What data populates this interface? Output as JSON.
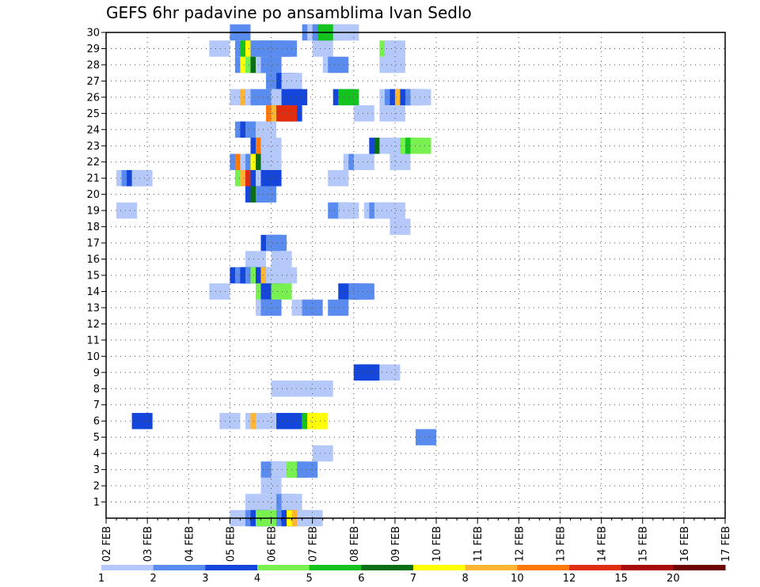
{
  "chart_data": {
    "type": "heatmap",
    "title": "GEFS 6hr padavine po ansamblima Ivan Sedlo",
    "x_ticks": [
      "02 FEB",
      "03 FEB",
      "04 FEB",
      "05 FEB",
      "06 FEB",
      "07 FEB",
      "08 FEB",
      "09 FEB",
      "10 FEB",
      "11 FEB",
      "12 FEB",
      "13 FEB",
      "14 FEB",
      "15 FEB",
      "16 FEB",
      "17 FEB"
    ],
    "y_ticks": [
      1,
      2,
      3,
      4,
      5,
      6,
      7,
      8,
      9,
      10,
      11,
      12,
      13,
      14,
      15,
      16,
      17,
      18,
      19,
      20,
      21,
      22,
      23,
      24,
      25,
      26,
      27,
      28,
      29,
      30
    ],
    "x_unit": "6-hour steps from 02 FEB 00z",
    "xlim": [
      0,
      60
    ],
    "ylim": [
      0,
      30
    ],
    "grid": true,
    "legend": {
      "position": "bottom",
      "levels": [
        "1",
        "2",
        "3",
        "4",
        "5",
        "6",
        "7",
        "8",
        "10",
        "12",
        "15",
        "20"
      ],
      "colors": [
        "#b4c8fa",
        "#5a8cf0",
        "#1446dc",
        "#78f050",
        "#14c31e",
        "#0a6e14",
        "#ffff00",
        "#ffb432",
        "#ff780a",
        "#e12d0f",
        "#aa0a0a",
        "#6e0505"
      ]
    },
    "cells": [
      [
        12,
        30,
        1
      ],
      [
        12.5,
        29,
        1
      ],
      [
        13,
        29,
        4
      ],
      [
        13.5,
        29,
        6
      ],
      [
        14,
        29,
        1
      ],
      [
        14.5,
        29,
        1
      ],
      [
        15,
        29,
        1
      ],
      [
        15.5,
        29,
        1
      ],
      [
        16,
        29,
        1
      ],
      [
        16.5,
        29,
        1
      ],
      [
        10,
        29,
        0
      ],
      [
        20,
        29,
        0
      ],
      [
        19,
        30,
        1
      ],
      [
        19.5,
        30,
        0
      ],
      [
        20,
        30,
        1
      ],
      [
        20.5,
        30,
        4
      ],
      [
        22,
        30,
        0
      ],
      [
        22.5,
        30,
        0
      ],
      [
        26.5,
        29,
        3
      ],
      [
        27,
        29,
        0
      ],
      [
        12.5,
        28,
        1
      ],
      [
        13,
        28,
        6
      ],
      [
        13.5,
        28,
        3
      ],
      [
        14,
        28,
        5
      ],
      [
        14.5,
        28,
        0
      ],
      [
        15,
        28,
        1
      ],
      [
        21,
        28,
        0
      ],
      [
        21.5,
        28,
        1
      ],
      [
        26.5,
        28,
        0
      ],
      [
        27,
        28,
        0
      ],
      [
        15.5,
        27,
        1
      ],
      [
        16,
        27,
        1
      ],
      [
        16.5,
        27,
        2
      ],
      [
        17,
        27,
        0
      ],
      [
        12,
        26,
        0
      ],
      [
        12.5,
        26,
        0
      ],
      [
        13,
        26,
        7
      ],
      [
        13.5,
        26,
        0
      ],
      [
        14,
        26,
        1
      ],
      [
        16,
        26,
        0
      ],
      [
        17,
        26,
        2
      ],
      [
        17.5,
        26,
        2
      ],
      [
        22,
        26,
        2
      ],
      [
        22.5,
        26,
        4
      ],
      [
        26.5,
        26,
        0
      ],
      [
        27,
        26,
        1
      ],
      [
        27.5,
        26,
        2
      ],
      [
        28,
        26,
        7
      ],
      [
        28.5,
        26,
        2
      ],
      [
        29,
        26,
        1
      ],
      [
        29.5,
        26,
        0
      ],
      [
        17,
        25,
        2
      ],
      [
        15.5,
        25,
        8
      ],
      [
        16,
        25,
        7
      ],
      [
        16.5,
        25,
        9
      ],
      [
        24,
        25,
        0
      ],
      [
        26.5,
        25,
        0
      ],
      [
        27,
        25,
        0
      ],
      [
        12.5,
        24,
        1
      ],
      [
        13,
        24,
        2
      ],
      [
        13.5,
        24,
        1
      ],
      [
        14,
        24,
        1
      ],
      [
        14.5,
        24,
        0
      ],
      [
        14,
        23,
        2
      ],
      [
        14.5,
        23,
        8
      ],
      [
        15,
        23,
        0
      ],
      [
        25.5,
        23,
        2
      ],
      [
        26,
        23,
        5
      ],
      [
        26.5,
        23,
        0
      ],
      [
        27,
        23,
        0
      ],
      [
        27.5,
        23,
        0
      ],
      [
        28,
        23,
        0
      ],
      [
        28.5,
        23,
        3
      ],
      [
        29,
        23,
        4
      ],
      [
        29.5,
        23,
        3
      ],
      [
        12,
        22,
        1
      ],
      [
        12.5,
        22,
        8
      ],
      [
        13,
        22,
        0
      ],
      [
        13.5,
        22,
        1
      ],
      [
        14,
        22,
        6
      ],
      [
        14.5,
        22,
        5
      ],
      [
        15,
        22,
        0
      ],
      [
        23,
        22,
        0
      ],
      [
        23.5,
        22,
        1
      ],
      [
        24,
        22,
        0
      ],
      [
        27.5,
        22,
        0
      ],
      [
        1,
        21,
        0
      ],
      [
        1.5,
        21,
        1
      ],
      [
        2,
        21,
        2
      ],
      [
        2.5,
        21,
        0
      ],
      [
        12.5,
        21,
        3
      ],
      [
        13,
        21,
        7
      ],
      [
        13.5,
        21,
        9
      ],
      [
        14,
        21,
        2
      ],
      [
        14.5,
        21,
        0
      ],
      [
        15,
        21,
        2
      ],
      [
        21.5,
        21,
        0
      ],
      [
        13.5,
        20,
        2
      ],
      [
        14,
        20,
        5
      ],
      [
        14.5,
        20,
        1
      ],
      [
        1,
        19,
        0
      ],
      [
        21.5,
        19,
        1
      ],
      [
        22,
        19,
        1
      ],
      [
        22.5,
        19,
        0
      ],
      [
        25,
        19,
        0
      ],
      [
        25.5,
        19,
        1
      ],
      [
        26,
        19,
        0
      ],
      [
        26.5,
        19,
        0
      ],
      [
        27,
        19,
        0
      ],
      [
        27.5,
        18,
        0
      ],
      [
        15,
        17,
        2
      ],
      [
        15.5,
        17,
        1
      ],
      [
        13.5,
        16,
        0
      ],
      [
        16,
        16,
        0
      ],
      [
        12,
        15,
        2
      ],
      [
        12.5,
        15,
        1
      ],
      [
        13,
        15,
        2
      ],
      [
        13.5,
        15,
        1
      ],
      [
        14,
        15,
        3
      ],
      [
        14.5,
        15,
        2
      ],
      [
        15,
        15,
        7
      ],
      [
        15.5,
        15,
        0
      ],
      [
        16,
        15,
        0
      ],
      [
        16.5,
        15,
        0
      ],
      [
        10,
        14,
        0
      ],
      [
        14.5,
        14,
        3
      ],
      [
        15,
        14,
        2
      ],
      [
        16,
        14,
        3
      ],
      [
        22.5,
        14,
        2
      ],
      [
        23.5,
        14,
        1
      ],
      [
        24,
        14,
        1
      ],
      [
        14.5,
        13,
        0
      ],
      [
        15,
        13,
        1
      ],
      [
        18,
        13,
        0
      ],
      [
        19,
        13,
        1
      ],
      [
        21.5,
        13,
        1
      ],
      [
        24,
        9,
        2
      ],
      [
        24.5,
        9,
        2
      ],
      [
        26.5,
        9,
        0
      ],
      [
        16,
        8,
        0
      ],
      [
        18,
        8,
        0
      ],
      [
        20,
        8,
        0
      ],
      [
        2.5,
        6,
        2
      ],
      [
        11,
        6,
        0
      ],
      [
        13.5,
        6,
        0
      ],
      [
        14,
        6,
        7
      ],
      [
        14.5,
        6,
        0
      ],
      [
        16,
        6,
        0
      ],
      [
        16.5,
        6,
        2
      ],
      [
        17,
        6,
        2
      ],
      [
        19,
        6,
        4
      ],
      [
        19.5,
        6,
        6
      ],
      [
        30,
        5,
        1
      ],
      [
        20,
        4,
        0
      ],
      [
        15,
        3,
        1
      ],
      [
        15.5,
        3,
        1
      ],
      [
        16,
        3,
        0
      ],
      [
        17,
        3,
        0
      ],
      [
        17.5,
        3,
        3
      ],
      [
        18.5,
        3,
        1
      ],
      [
        15,
        2,
        0
      ],
      [
        13.5,
        1,
        0
      ],
      [
        14.5,
        1,
        0
      ],
      [
        16.5,
        1,
        1
      ],
      [
        17,
        1,
        0
      ],
      [
        12,
        0,
        0
      ],
      [
        13.5,
        0,
        1
      ],
      [
        14,
        0,
        2
      ],
      [
        14.5,
        0,
        3
      ],
      [
        16.5,
        0,
        1
      ],
      [
        17,
        0,
        2
      ],
      [
        17.5,
        0,
        6
      ],
      [
        18,
        0,
        7
      ],
      [
        18.5,
        0,
        0
      ],
      [
        19,
        0,
        0
      ]
    ]
  }
}
